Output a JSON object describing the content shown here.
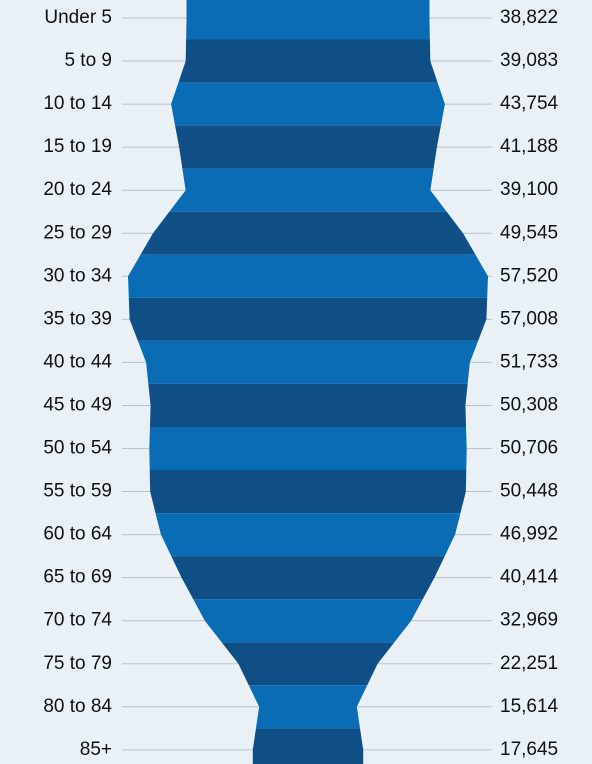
{
  "chart_data": {
    "type": "pyramid",
    "categories": [
      "Under 5",
      "5 to 9",
      "10 to 14",
      "15 to 19",
      "20 to 24",
      "25 to 29",
      "30 to 34",
      "35 to 39",
      "40 to 44",
      "45 to 49",
      "50 to 54",
      "55 to 59",
      "60 to 64",
      "65 to 69",
      "70 to 74",
      "75 to 79",
      "80 to 84",
      "85+"
    ],
    "values": [
      38822,
      39083,
      43754,
      41188,
      39100,
      49545,
      57520,
      57008,
      51733,
      50308,
      50706,
      50448,
      46992,
      40414,
      32969,
      22251,
      15614,
      17645
    ],
    "value_labels": [
      "38,822",
      "39,083",
      "43,754",
      "41,188",
      "39,100",
      "49,545",
      "57,520",
      "57,008",
      "51,733",
      "50,308",
      "50,706",
      "50,448",
      "46,992",
      "40,414",
      "32,969",
      "22,251",
      "15,614",
      "17,645"
    ],
    "colors": [
      "#0a6cb5",
      "#0f4f86"
    ]
  }
}
